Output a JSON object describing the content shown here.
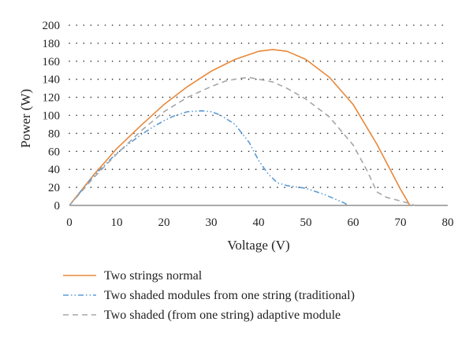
{
  "chart_data": {
    "type": "line",
    "xlabel": "Voltage (V)",
    "ylabel": "Power (W)",
    "xlim": [
      0,
      80
    ],
    "ylim": [
      0,
      200
    ],
    "xticks": [
      0,
      10,
      20,
      30,
      40,
      50,
      60,
      70,
      80
    ],
    "yticks": [
      0,
      20,
      40,
      60,
      80,
      100,
      120,
      140,
      160,
      180,
      200
    ],
    "grid": "horizontal dotted",
    "legend": "below",
    "series": [
      {
        "name": "Two strings normal",
        "color": "#e8883a",
        "style": "solid",
        "x": [
          0,
          5,
          10,
          15,
          20,
          25,
          30,
          35,
          40,
          43,
          46,
          50,
          55,
          60,
          65,
          68,
          70,
          72
        ],
        "y": [
          0,
          33,
          63,
          88,
          112,
          132,
          149,
          162,
          171,
          173,
          171,
          162,
          142,
          112,
          68,
          38,
          18,
          0
        ]
      },
      {
        "name": "Two shaded modules from one string (traditional)",
        "color": "#5b9bd5",
        "style": "dash-dot-dot",
        "x": [
          0,
          5,
          10,
          15,
          18,
          20,
          22,
          25,
          28,
          30,
          32,
          35,
          38,
          40,
          42,
          44,
          46,
          50,
          54,
          58,
          59
        ],
        "y": [
          0,
          32,
          58,
          78,
          88,
          94,
          99,
          104,
          105,
          104,
          100,
          90,
          70,
          50,
          35,
          25,
          22,
          19,
          12,
          3,
          0
        ]
      },
      {
        "name": "Two shaded (from one string) adaptive module",
        "color": "#a6a6a6",
        "style": "dashed",
        "x": [
          0,
          5,
          10,
          15,
          20,
          25,
          30,
          33,
          36,
          38,
          40,
          43,
          46,
          50,
          55,
          60,
          63,
          65,
          67,
          70,
          72,
          73
        ],
        "y": [
          0,
          30,
          57,
          82,
          104,
          120,
          132,
          138,
          141,
          142,
          140,
          137,
          130,
          118,
          98,
          67,
          38,
          15,
          9,
          5,
          2,
          0
        ]
      }
    ]
  }
}
